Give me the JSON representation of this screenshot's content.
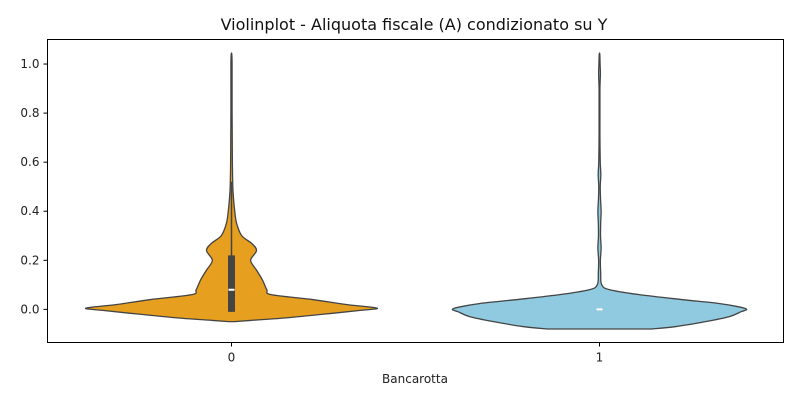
{
  "chart_data": {
    "type": "violin",
    "title": "Violinplot - Aliquota fiscale (A) condizionato su Y",
    "xlabel": "Bancarotta",
    "ylabel": "",
    "categories": [
      "0",
      "1"
    ],
    "yticks": [
      "0.0",
      "0.2",
      "0.4",
      "0.6",
      "0.8",
      "1.0"
    ],
    "ylim": [
      -0.135,
      1.1
    ],
    "grid": false,
    "legend": "none",
    "violins": [
      {
        "category": "0",
        "color": "#e69f1f",
        "profile": [
          [
            -0.05,
            0.02
          ],
          [
            -0.045,
            0.13
          ],
          [
            -0.035,
            0.36
          ],
          [
            -0.02,
            0.62
          ],
          [
            -0.005,
            0.86
          ],
          [
            0.005,
            0.99
          ],
          [
            0.02,
            0.78
          ],
          [
            0.04,
            0.55
          ],
          [
            0.06,
            0.27
          ],
          [
            0.08,
            0.24
          ],
          [
            0.12,
            0.21
          ],
          [
            0.16,
            0.17
          ],
          [
            0.2,
            0.13
          ],
          [
            0.24,
            0.17
          ],
          [
            0.27,
            0.135
          ],
          [
            0.3,
            0.07
          ],
          [
            0.35,
            0.035
          ],
          [
            0.4,
            0.022
          ],
          [
            0.45,
            0.014
          ],
          [
            0.5,
            0.009
          ],
          [
            0.6,
            0.006
          ],
          [
            0.7,
            0.005
          ],
          [
            0.8,
            0.004
          ],
          [
            0.9,
            0.004
          ],
          [
            1.0,
            0.004
          ],
          [
            1.04,
            0.002
          ]
        ],
        "box": {
          "q1": -0.01,
          "median": 0.08,
          "q3": 0.22,
          "whisker_low": -0.01,
          "whisker_high": 0.52
        },
        "whisker_max": 1.04
      },
      {
        "category": "1",
        "color": "#8fcae0",
        "profile": [
          [
            -0.08,
            0.35
          ],
          [
            -0.07,
            0.52
          ],
          [
            -0.05,
            0.72
          ],
          [
            -0.03,
            0.88
          ],
          [
            -0.01,
            0.96
          ],
          [
            0.0,
            1.0
          ],
          [
            0.01,
            0.95
          ],
          [
            0.025,
            0.8
          ],
          [
            0.04,
            0.56
          ],
          [
            0.06,
            0.27
          ],
          [
            0.08,
            0.07
          ],
          [
            0.1,
            0.015
          ],
          [
            0.15,
            0.008
          ],
          [
            0.2,
            0.006
          ],
          [
            0.25,
            0.011
          ],
          [
            0.3,
            0.007
          ],
          [
            0.35,
            0.008
          ],
          [
            0.4,
            0.011
          ],
          [
            0.45,
            0.007
          ],
          [
            0.5,
            0.005
          ],
          [
            0.55,
            0.009
          ],
          [
            0.6,
            0.005
          ],
          [
            0.7,
            0.003
          ],
          [
            0.8,
            0.003
          ],
          [
            0.9,
            0.003
          ],
          [
            0.96,
            0.006
          ],
          [
            1.0,
            0.004
          ],
          [
            1.04,
            0.002
          ]
        ],
        "box": {
          "q1": 0.0,
          "median": 0.0,
          "q3": 0.0,
          "whisker_low": 0.0,
          "whisker_high": 0.0
        },
        "whisker_max": 1.05
      }
    ]
  }
}
